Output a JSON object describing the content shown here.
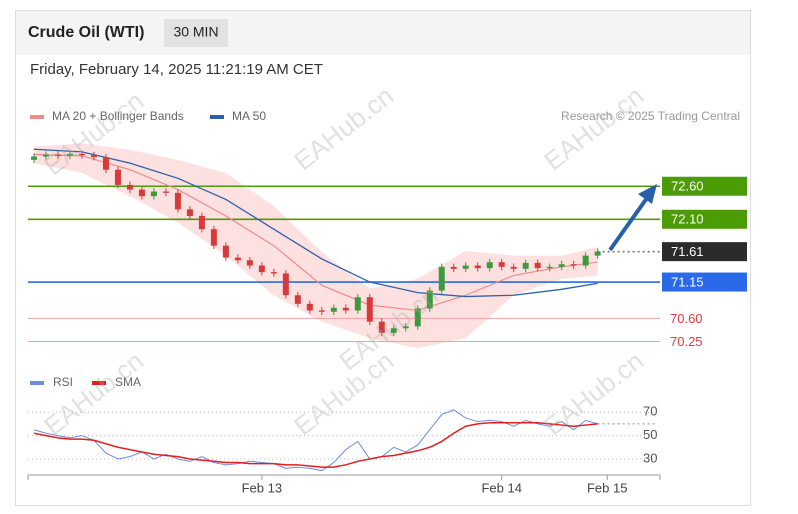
{
  "header": {
    "title": "Crude Oil (WTI)",
    "timeframe": "30 MIN",
    "timestamp": "Friday, February 14, 2025 11:21:19 AM CET",
    "copyright": "Research © 2025 Trading Central",
    "watermark": "EAHub.cn"
  },
  "chart_data": [
    {
      "type": "candlestick",
      "xlim": [
        -0.5,
        52.2
      ],
      "ylim": [
        70.0,
        73.3
      ],
      "up_color": "#3d9a3d",
      "down_color": "#d83a3a",
      "open": [
        73.0,
        73.05,
        73.08,
        73.06,
        73.09,
        73.07,
        73.04,
        72.85,
        72.62,
        72.55,
        72.45,
        72.52,
        72.5,
        72.25,
        72.15,
        71.95,
        71.7,
        71.52,
        71.48,
        71.4,
        71.3,
        71.28,
        70.95,
        70.82,
        70.72,
        70.7,
        70.76,
        70.72,
        70.92,
        70.55,
        70.38,
        70.45,
        70.48,
        70.75,
        71.02,
        71.38,
        71.35,
        71.4,
        71.36,
        71.45,
        71.38,
        71.35,
        71.44,
        71.36,
        71.38,
        71.42,
        71.4,
        71.55
      ],
      "high": [
        73.1,
        73.13,
        73.13,
        73.14,
        73.14,
        73.12,
        73.09,
        72.9,
        72.67,
        72.6,
        72.57,
        72.57,
        72.55,
        72.3,
        72.2,
        72.0,
        71.75,
        71.57,
        71.53,
        71.45,
        71.35,
        71.33,
        71.0,
        70.87,
        70.77,
        70.81,
        70.81,
        70.97,
        70.97,
        70.6,
        70.5,
        70.53,
        70.8,
        71.07,
        71.43,
        71.43,
        71.45,
        71.45,
        71.5,
        71.5,
        71.43,
        71.49,
        71.49,
        71.43,
        71.47,
        71.47,
        71.6,
        71.66
      ],
      "low": [
        72.95,
        73.0,
        73.01,
        73.01,
        73.02,
        72.99,
        72.8,
        72.57,
        72.5,
        72.4,
        72.4,
        72.45,
        72.2,
        72.1,
        71.9,
        71.65,
        71.47,
        71.43,
        71.35,
        71.25,
        71.23,
        70.9,
        70.77,
        70.67,
        70.65,
        70.65,
        70.67,
        70.67,
        70.5,
        70.33,
        70.33,
        70.4,
        70.43,
        70.7,
        70.97,
        71.3,
        71.3,
        71.31,
        71.31,
        71.33,
        71.3,
        71.3,
        71.31,
        71.31,
        71.33,
        71.35,
        71.35,
        71.5
      ],
      "close": [
        73.05,
        73.08,
        73.06,
        73.09,
        73.07,
        73.04,
        72.85,
        72.62,
        72.55,
        72.45,
        72.52,
        72.5,
        72.25,
        72.15,
        71.95,
        71.7,
        71.52,
        71.48,
        71.4,
        71.3,
        71.28,
        70.95,
        70.82,
        70.72,
        70.7,
        70.76,
        70.72,
        70.92,
        70.55,
        70.38,
        70.45,
        70.48,
        70.75,
        71.02,
        71.38,
        71.35,
        71.4,
        71.36,
        71.45,
        71.38,
        71.35,
        71.44,
        71.36,
        71.38,
        71.42,
        71.4,
        71.55,
        71.61
      ],
      "series": [
        {
          "name": "MA 20 + Bollinger Bands",
          "color": "#f28a8a",
          "band_color": "#fde0e0",
          "x": [
            0,
            4,
            8,
            12,
            16,
            20,
            24,
            28,
            32,
            36,
            40,
            44,
            47
          ],
          "values": [
            73.08,
            73.06,
            72.85,
            72.55,
            72.15,
            71.7,
            71.1,
            70.8,
            70.72,
            70.95,
            71.25,
            71.38,
            71.45
          ],
          "upper": [
            73.2,
            73.25,
            73.15,
            73.0,
            72.8,
            72.3,
            71.6,
            71.05,
            71.2,
            71.62,
            71.55,
            71.55,
            71.68
          ],
          "lower": [
            72.95,
            72.8,
            72.45,
            72.05,
            71.55,
            70.95,
            70.55,
            70.3,
            70.15,
            70.3,
            70.95,
            71.2,
            71.25
          ]
        },
        {
          "name": "MA 50",
          "color": "#2f5fa7",
          "x": [
            0,
            4,
            8,
            12,
            16,
            20,
            24,
            28,
            32,
            36,
            40,
            44,
            47
          ],
          "values": [
            73.16,
            73.12,
            72.95,
            72.72,
            72.4,
            71.95,
            71.5,
            71.15,
            70.99,
            70.93,
            70.95,
            71.04,
            71.13
          ]
        }
      ],
      "levels": [
        {
          "value": 72.6,
          "label": "72.60",
          "color": "#4c9c08",
          "style": "box",
          "line": "solid"
        },
        {
          "value": 72.1,
          "label": "72.10",
          "color": "#4c9c08",
          "style": "box",
          "line": "solid"
        },
        {
          "value": 71.61,
          "color": "#2b2b2b",
          "style": "box",
          "line": "dotted"
        },
        {
          "value": 71.15,
          "color": "#2a6ae8",
          "style": "box",
          "line": "solid"
        },
        {
          "value": 70.6,
          "label": "70.60",
          "color": "#e23a3a",
          "style": "text",
          "line": "solid"
        },
        {
          "value": 70.25,
          "color": "#e23a3a",
          "style": "text",
          "line": "solid"
        }
      ]
    },
    {
      "type": "line",
      "xlim": [
        -0.5,
        52.2
      ],
      "ylim": [
        18,
        83
      ],
      "yticks": [
        30,
        50,
        70
      ],
      "grid": true,
      "xticks": [
        {
          "value": 19,
          "label": "Feb 13"
        },
        {
          "value": 39,
          "label": "Feb 14"
        },
        {
          "value": 47.8,
          "label": "Feb 15"
        }
      ],
      "series": [
        {
          "name": "RSI",
          "color": "#6b8ce0",
          "values": [
            55,
            52,
            50,
            48,
            50,
            46,
            35,
            30,
            32,
            36,
            30,
            34,
            30,
            28,
            32,
            27,
            25,
            26,
            28,
            27,
            26,
            22,
            23,
            22,
            20,
            27,
            38,
            45,
            30,
            32,
            40,
            36,
            42,
            55,
            68,
            72,
            65,
            62,
            63,
            62,
            58,
            63,
            60,
            58,
            62,
            55,
            63,
            60
          ]
        },
        {
          "name": "SMA",
          "color": "#e02020",
          "values": [
            52,
            50,
            48,
            47,
            47,
            46,
            43,
            40,
            38,
            36,
            34,
            33,
            32,
            30,
            29,
            28,
            27,
            27,
            26,
            26,
            26,
            25,
            25,
            24,
            23,
            23,
            25,
            28,
            30,
            32,
            33,
            35,
            37,
            40,
            45,
            52,
            58,
            60,
            61,
            61,
            61,
            61,
            61,
            60,
            59,
            58,
            59,
            60
          ]
        }
      ]
    }
  ]
}
